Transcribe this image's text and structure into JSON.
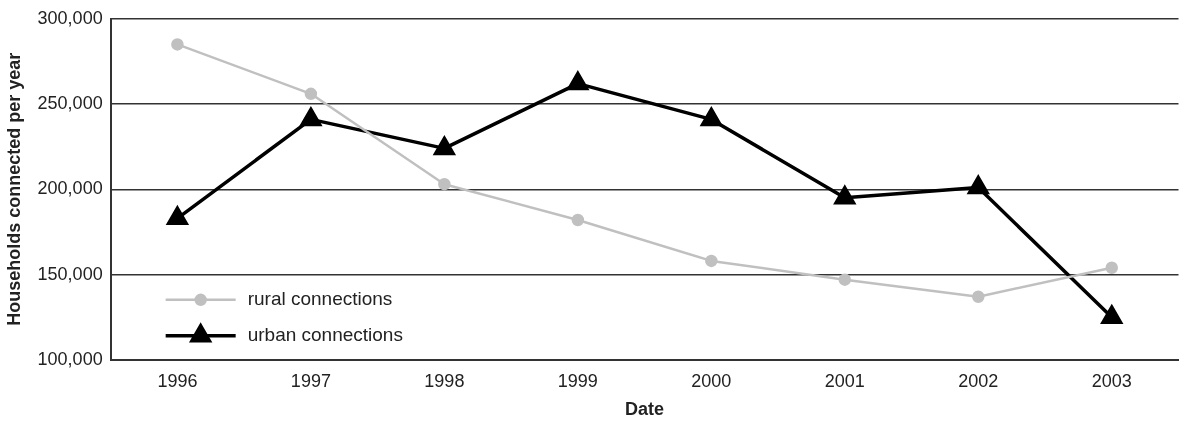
{
  "chart_data": {
    "type": "line",
    "xlabel": "Date",
    "ylabel": "Households connected per year",
    "categories": [
      "1996",
      "1997",
      "1998",
      "1999",
      "2000",
      "2001",
      "2002",
      "2003"
    ],
    "series": [
      {
        "name": "rural connections",
        "color": "#c0c0c0",
        "marker": "circle",
        "values": [
          285000,
          256000,
          203000,
          182000,
          158000,
          147000,
          137000,
          154000
        ]
      },
      {
        "name": "urban connections",
        "color": "#000000",
        "marker": "triangle",
        "values": [
          183000,
          241000,
          224000,
          262000,
          241000,
          195000,
          201000,
          125000
        ]
      }
    ],
    "ylim": [
      100000,
      300000
    ],
    "yticks": [
      {
        "value": 100000,
        "label": "100,000"
      },
      {
        "value": 150000,
        "label": "150,000"
      },
      {
        "value": 200000,
        "label": "200,000"
      },
      {
        "value": 250000,
        "label": "250,000"
      },
      {
        "value": 300000,
        "label": "300,000"
      }
    ],
    "grid": "y",
    "legend": "bottom left"
  }
}
